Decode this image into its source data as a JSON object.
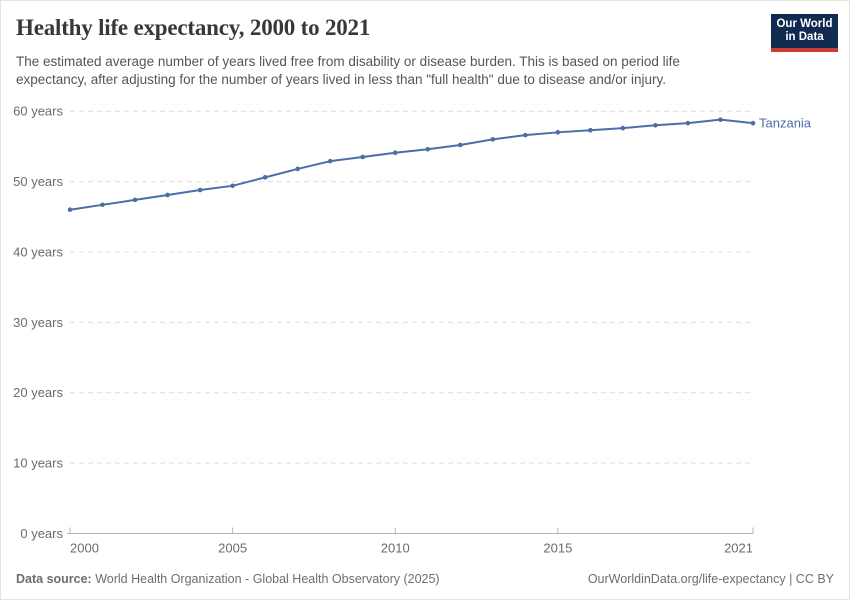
{
  "header": {
    "title": "Healthy life expectancy, 2000 to 2021",
    "subtitle": "The estimated average number of years lived free from disability or disease burden. This is based on period life expectancy, after adjusting for the number of years lived in less than \"full health\" due to disease and/or injury.",
    "logo": {
      "line1": "Our World",
      "line2": "in Data",
      "bg_color": "#102A50",
      "accent_color": "#CC3B33"
    }
  },
  "chart_data": {
    "type": "line",
    "title": "Healthy life expectancy, 2000 to 2021",
    "xlabel": "",
    "ylabel": "",
    "xlim": [
      2000,
      2021
    ],
    "ylim": [
      0,
      60
    ],
    "x_ticks": [
      2000,
      2005,
      2010,
      2015,
      2021
    ],
    "y_ticks": [
      0,
      10,
      20,
      30,
      40,
      50,
      60
    ],
    "y_tick_suffix": " years",
    "grid": "horizontal-dashed",
    "legend_position": "end-of-line-label",
    "x": [
      2000,
      2001,
      2002,
      2003,
      2004,
      2005,
      2006,
      2007,
      2008,
      2009,
      2010,
      2011,
      2012,
      2013,
      2014,
      2015,
      2016,
      2017,
      2018,
      2019,
      2020,
      2021
    ],
    "series": [
      {
        "name": "Tanzania",
        "color": "#4C6EA8",
        "values": [
          46.0,
          46.7,
          47.4,
          48.1,
          48.8,
          49.4,
          50.6,
          51.8,
          52.9,
          53.5,
          54.1,
          54.6,
          55.2,
          56.0,
          56.6,
          57.0,
          57.3,
          57.6,
          58.0,
          58.3,
          58.8,
          58.3
        ]
      }
    ]
  },
  "footer": {
    "source_label": "Data source:",
    "source_text": "World Health Organization - Global Health Observatory (2025)",
    "link_text": "OurWorldinData.org/life-expectancy | CC BY"
  },
  "colors": {
    "line": "#4C6EA8",
    "grid": "#dcdcdc",
    "axis": "#b5b5b5",
    "tick_label": "#6b6b6b",
    "title": "#383838",
    "subtitle": "#555555",
    "footer": "#6e6e6e"
  }
}
